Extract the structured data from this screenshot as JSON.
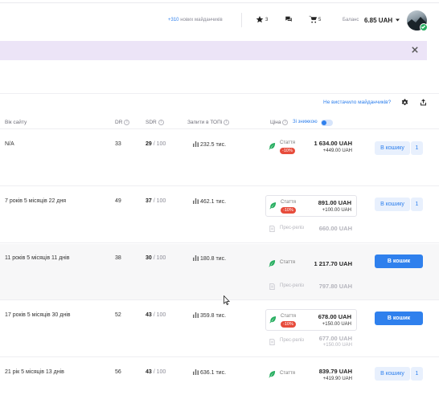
{
  "header": {
    "new_sites_count": "+310",
    "new_sites_text": "нових майданчиків",
    "favorites_count": "3",
    "cart_count": "5",
    "balance_label": "Баланс",
    "balance_value": "6.85 UAH"
  },
  "toolbar": {
    "not_enough_link": "Не вистачило майданчиків?"
  },
  "table": {
    "headers": {
      "age": "Вік сайту",
      "dr": "DR",
      "sdr": "SDR",
      "traffic": "Запити в ТОПі",
      "price": "Ціна",
      "discount_toggle": "Зі знижкою"
    },
    "rows": [
      {
        "age": "N/A",
        "dr": "33",
        "sdr": "29",
        "sdr_max": "/ 100",
        "traffic": "232.5 тис.",
        "article_label": "Стаття",
        "discount": "-10%",
        "article_price": "1 634.00 UAH",
        "article_delta": "+449.00 UAH",
        "button": "В кошику",
        "qty": "1"
      },
      {
        "age": "7 років 5 місяців 22 дня",
        "dr": "49",
        "sdr": "37",
        "sdr_max": "/ 100",
        "traffic": "462.1 тис.",
        "article_label": "Стаття",
        "discount": "-10%",
        "article_price": "891.00 UAH",
        "article_delta": "+100.00 UAH",
        "press_label": "Прес-реліз",
        "press_price": "660.00 UAH",
        "button": "В кошику",
        "qty": "1"
      },
      {
        "age": "11 років 5 місяців 11 днів",
        "dr": "38",
        "sdr": "30",
        "sdr_max": "/ 100",
        "traffic": "180.8 тис.",
        "article_label": "Стаття",
        "article_price": "1 217.70 UAH",
        "press_label": "Прес-реліз",
        "press_price": "797.80 UAH",
        "button": "В кошик"
      },
      {
        "age": "17 років 5 місяців 30 днів",
        "dr": "52",
        "sdr": "43",
        "sdr_max": "/ 100",
        "traffic": "359.8 тис.",
        "article_label": "Стаття",
        "discount": "-10%",
        "article_price": "678.00 UAH",
        "article_delta": "+150.00 UAH",
        "press_label": "Прес-реліз",
        "press_price": "677.00 UAH",
        "press_delta": "+150.00 UAH",
        "button": "В кошик"
      },
      {
        "age": "21 рік 5 місяців 13 днів",
        "dr": "56",
        "sdr": "43",
        "sdr_max": "/ 100",
        "traffic": "636.1 тис.",
        "article_label": "Стаття",
        "article_price": "839.79 UAH",
        "article_delta": "+419.90 UAH",
        "button": "В кошику",
        "qty": "1"
      }
    ]
  },
  "colors": {
    "accent": "#2f80ed",
    "banner": "#ece4f7",
    "discount": "#e74c3c",
    "leaf": "#27ae60"
  }
}
